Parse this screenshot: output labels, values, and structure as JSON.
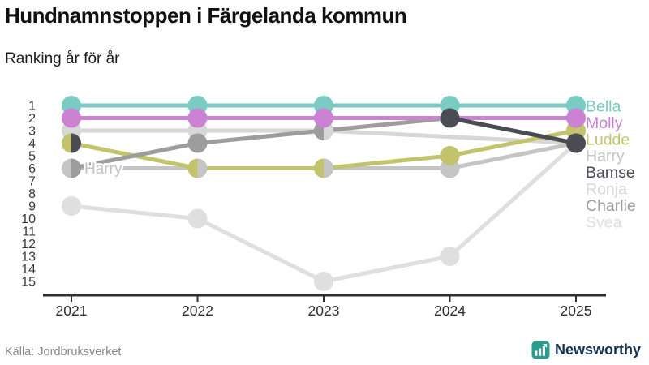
{
  "header": {
    "title": "Hundnamnstoppen i Färgelanda kommun",
    "subtitle": "Ranking år för år"
  },
  "footer": {
    "source": "Källa: Jordbruksverket",
    "brand": "Newsworthy",
    "brand_text_color": "#16324f",
    "logo_color": "#2b9d8f"
  },
  "chart_data": {
    "type": "line",
    "variant": "bump-ranking",
    "title": "Hundnamnstoppen i Färgelanda kommun",
    "subtitle": "Ranking år för år",
    "xlabel": "",
    "ylabel": "",
    "x": [
      "2021",
      "2022",
      "2023",
      "2024",
      "2025"
    ],
    "y_ticks": [
      1,
      2,
      3,
      4,
      5,
      6,
      7,
      8,
      9,
      10,
      11,
      12,
      13,
      14,
      15
    ],
    "ylim": [
      1,
      15
    ],
    "y_inverted": true,
    "grid": false,
    "legend_position": "right",
    "axis_color": "#2f2f2f",
    "tick_label_color": "#3a3a3a",
    "series": [
      {
        "name": "Bella",
        "color": "#79cbc3",
        "values": [
          1,
          1,
          1,
          1,
          1
        ]
      },
      {
        "name": "Molly",
        "color": "#cb82d2",
        "values": [
          2,
          2,
          2,
          2,
          2
        ]
      },
      {
        "name": "Ludde",
        "color": "#c3c36d",
        "values": [
          4,
          6,
          6,
          5,
          3
        ]
      },
      {
        "name": "Harry",
        "color": "#c5c5c5",
        "values": [
          6,
          6,
          6,
          6,
          4
        ]
      },
      {
        "name": "Bamse",
        "color": "#4b4b54",
        "values": [
          4,
          null,
          null,
          2,
          4
        ]
      },
      {
        "name": "Ronja",
        "color": "#d7d7d7",
        "values": [
          3,
          3,
          3,
          null,
          4
        ]
      },
      {
        "name": "Charlie",
        "color": "#9d9d9d",
        "values": [
          6,
          4,
          3,
          2,
          4
        ]
      },
      {
        "name": "Svea",
        "color": "#dfdfdf",
        "values": [
          9,
          10,
          15,
          13,
          4
        ]
      }
    ],
    "split_ties": [
      {
        "year": "2021",
        "rank": 4,
        "left": "Ludde",
        "right": "Bamse"
      },
      {
        "year": "2021",
        "rank": 6,
        "left": "Harry",
        "right": "Charlie"
      },
      {
        "year": "2022",
        "rank": 6,
        "left": "Ludde",
        "right": "Harry"
      },
      {
        "year": "2023",
        "rank": 3,
        "left": "Charlie",
        "right": "Ronja"
      },
      {
        "year": "2023",
        "rank": 6,
        "left": "Ludde",
        "right": "Harry"
      }
    ],
    "annotations": [
      {
        "text": "Harry",
        "x": "2021",
        "rank": 6,
        "color": "#c3c3c3"
      }
    ]
  }
}
